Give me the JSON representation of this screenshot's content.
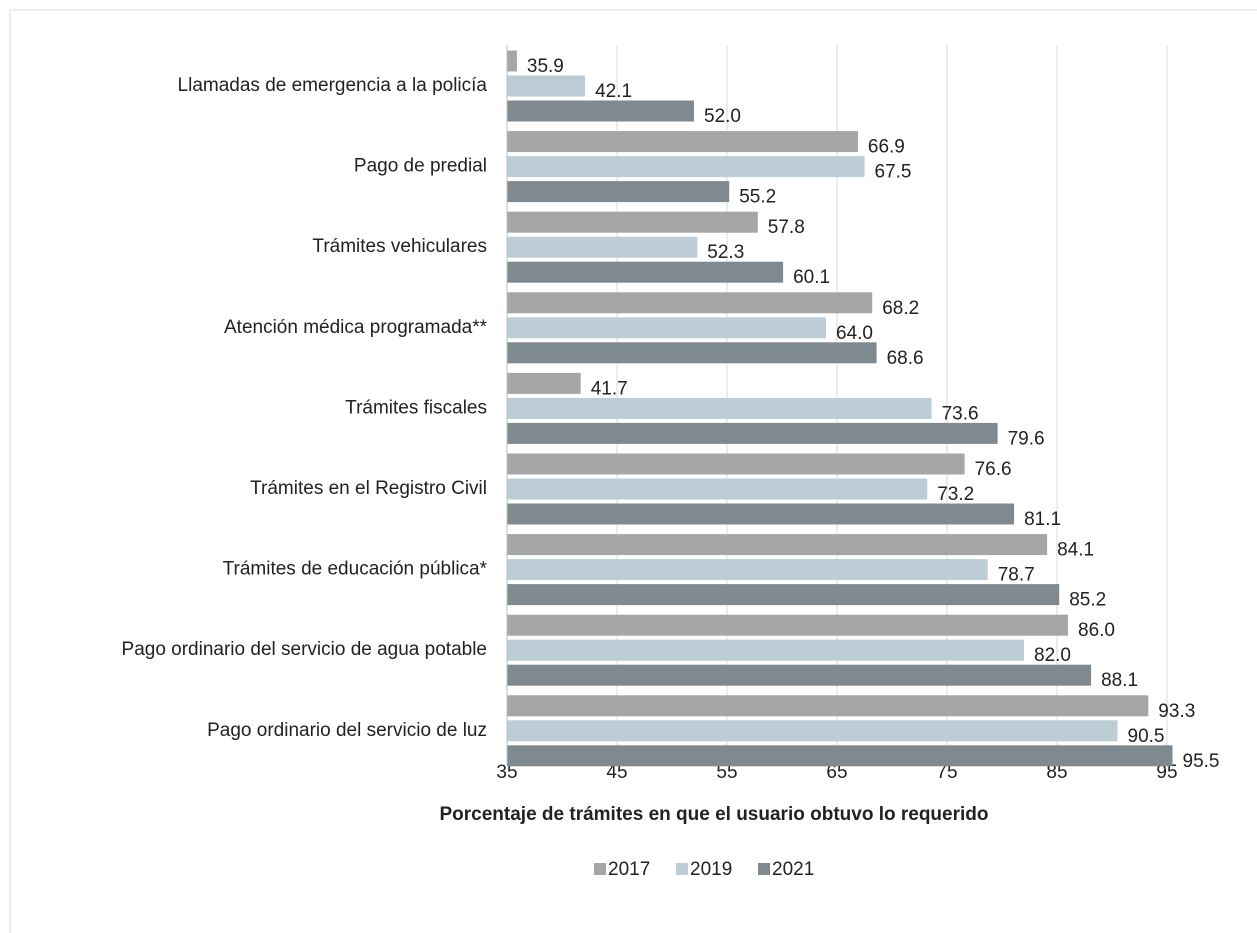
{
  "chart_data": {
    "type": "bar",
    "orientation": "horizontal",
    "categories": [
      "Llamadas de emergencia a la policía",
      "Pago de predial",
      "Trámites vehiculares",
      "Atención médica programada**",
      "Trámites fiscales",
      "Trámites en el Registro Civil",
      "Trámites de educación pública*",
      "Pago ordinario del servicio de agua potable",
      "Pago ordinario del servicio de luz"
    ],
    "series": [
      {
        "name": "2017",
        "color": "#a6a6a6",
        "values": [
          35.9,
          66.9,
          57.8,
          68.2,
          41.7,
          76.6,
          84.1,
          86.0,
          93.3
        ],
        "value_labels": [
          "35.9",
          "66.9",
          "57.8",
          "68.2",
          "41.7",
          "76.6",
          "84.1",
          "86.0",
          "93.3"
        ]
      },
      {
        "name": "2019",
        "color": "#bccdd5",
        "values": [
          42.1,
          67.5,
          52.3,
          64.0,
          73.6,
          73.2,
          78.7,
          82.0,
          90.5
        ],
        "value_labels": [
          "42.1",
          "67.5",
          "52.3",
          "64.0",
          "73.6",
          "73.2",
          "78.7",
          "82.0",
          "90.5"
        ]
      },
      {
        "name": "2021",
        "color": "#7f8a90",
        "values": [
          52.0,
          55.2,
          60.1,
          68.6,
          79.6,
          81.1,
          85.2,
          88.1,
          95.5
        ],
        "value_labels": [
          "52.0",
          "55.2",
          "60.1",
          "68.6",
          "79.6",
          "81.1",
          "85.2",
          "88.1",
          "95.5"
        ]
      }
    ],
    "xlabel": "Porcentaje de trámites en que el usuario obtuvo lo requerido",
    "xlim": [
      35,
      95
    ],
    "xticks": [
      35,
      45,
      55,
      65,
      75,
      85,
      95
    ],
    "grid": true,
    "legend": "bottom"
  }
}
